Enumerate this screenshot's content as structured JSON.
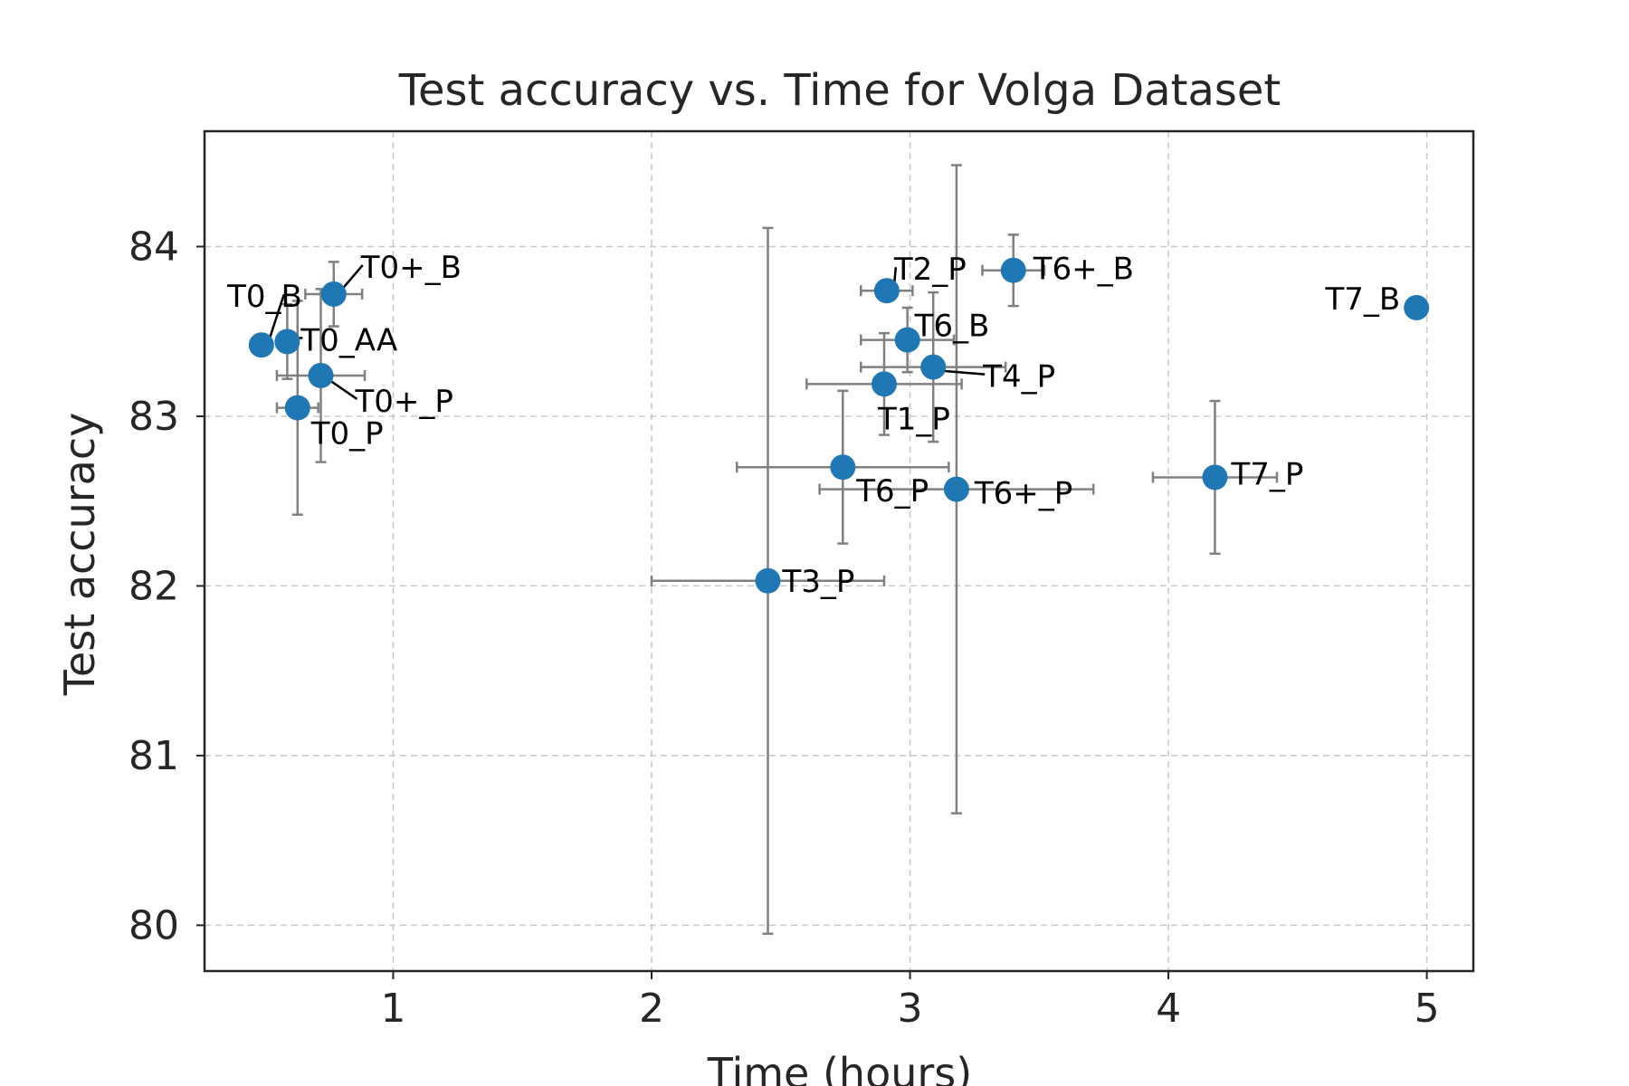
{
  "chart_data": {
    "type": "scatter",
    "title": "Test accuracy vs. Time for Volga Dataset",
    "xlabel": "Time (hours)",
    "ylabel": "Test accuracy",
    "xlim": [
      0.27,
      5.18
    ],
    "ylim": [
      79.73,
      84.68
    ],
    "xticks": [
      1,
      2,
      3,
      4,
      5
    ],
    "yticks": [
      80,
      81,
      82,
      83,
      84
    ],
    "grid": true,
    "marker_color": "#1f77b4",
    "errorbar_color": "#808080",
    "points": [
      {
        "label": "T0_B",
        "x": 0.49,
        "y": 83.42,
        "xerr": null,
        "yerr": null
      },
      {
        "label": "T0_AA",
        "x": 0.59,
        "y": 83.44,
        "xerr": 0.04,
        "yerr": 0.22
      },
      {
        "label": "T0+_B",
        "x": 0.77,
        "y": 83.72,
        "xerr": 0.11,
        "yerr": 0.19
      },
      {
        "label": "T0+_P",
        "x": 0.72,
        "y": 83.24,
        "xerr": 0.17,
        "yerr": 0.51
      },
      {
        "label": "T0_P",
        "x": 0.63,
        "y": 83.05,
        "xerr": 0.08,
        "yerr": 0.63
      },
      {
        "label": "T2_P",
        "x": 2.91,
        "y": 83.74,
        "xerr": 0.1,
        "yerr": null
      },
      {
        "label": "T6+_B",
        "x": 3.4,
        "y": 83.86,
        "xerr": 0.12,
        "yerr": 0.21
      },
      {
        "label": "T6_B",
        "x": 2.99,
        "y": 83.45,
        "xerr": 0.18,
        "yerr": 0.19
      },
      {
        "label": "T4_P",
        "x": 3.09,
        "y": 83.29,
        "xerr": 0.28,
        "yerr": 0.44
      },
      {
        "label": "T1_P",
        "x": 2.9,
        "y": 83.19,
        "xerr": 0.3,
        "yerr": 0.3
      },
      {
        "label": "T7_B",
        "x": 4.96,
        "y": 83.64,
        "xerr": null,
        "yerr": null
      },
      {
        "label": "T6_P",
        "x": 2.74,
        "y": 82.7,
        "xerr": 0.41,
        "yerr": 0.45
      },
      {
        "label": "T6+_P",
        "x": 3.18,
        "y": 82.57,
        "xerr": 0.53,
        "yerr": 1.91
      },
      {
        "label": "T7_P",
        "x": 4.18,
        "y": 82.64,
        "xerr": 0.24,
        "yerr": 0.45
      },
      {
        "label": "T3_P",
        "x": 2.45,
        "y": 82.03,
        "xerr": 0.45,
        "yerr": 2.08
      }
    ]
  }
}
